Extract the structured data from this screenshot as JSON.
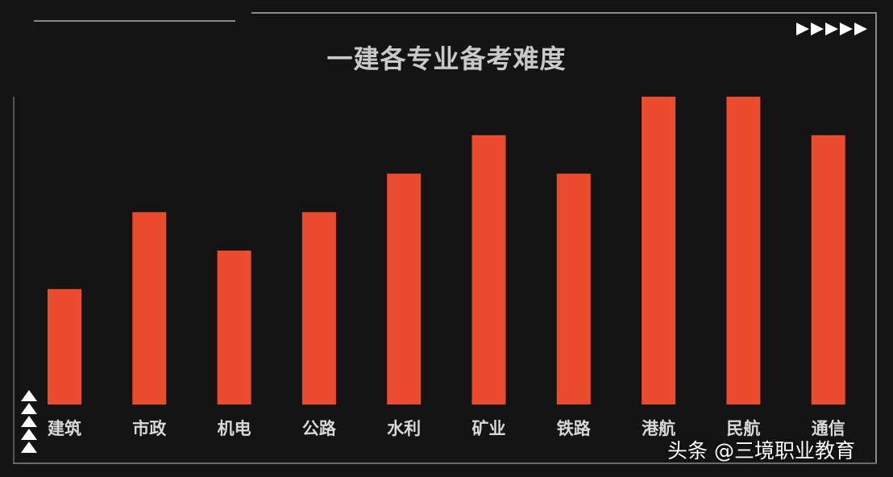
{
  "chart_data": {
    "type": "bar",
    "title": "一建各专业备考难度",
    "xlabel": "",
    "ylabel": "",
    "categories": [
      "建筑",
      "市政",
      "机电",
      "公路",
      "水利",
      "矿业",
      "铁路",
      "港航",
      "民航",
      "通信"
    ],
    "values": [
      3,
      5,
      4,
      5,
      6,
      7,
      6,
      8,
      8,
      7
    ],
    "ylim": [
      0,
      8
    ],
    "grid": false,
    "bar_color": "#ea4c2d"
  },
  "watermark": "头条 @三境职业教育",
  "colors": {
    "background": "#141414",
    "frame": "#8a8a8a",
    "title": "#c9c9c9",
    "label": "#d8d8d8"
  },
  "decorations": {
    "top_right": "triangle-right-icons",
    "bottom_left": "triangle-up-icons"
  }
}
